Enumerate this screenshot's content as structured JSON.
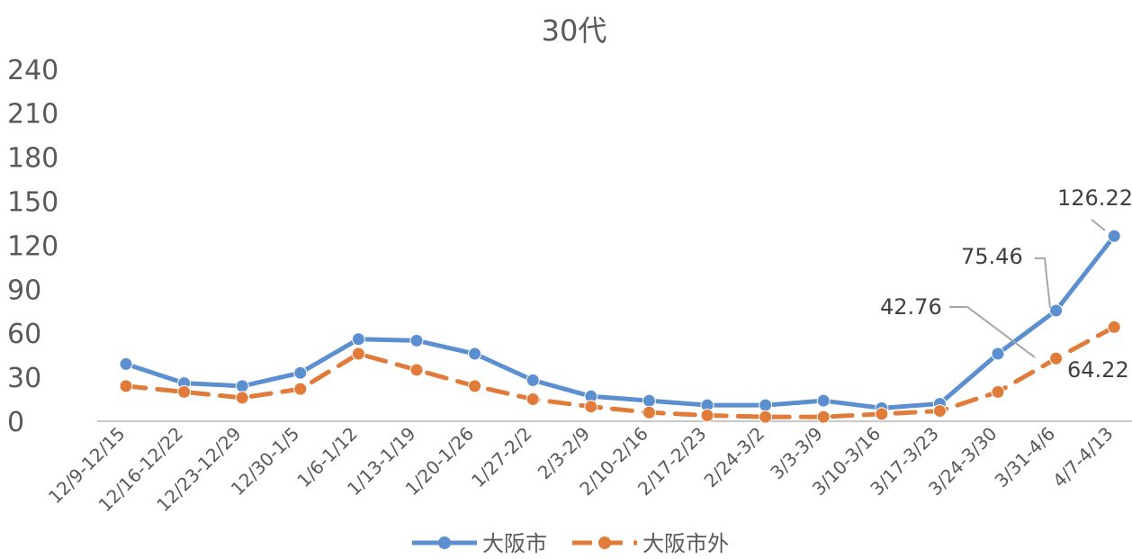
{
  "chart_data": {
    "type": "line",
    "title": "30代",
    "categories": [
      "12/9-12/15",
      "12/16-12/22",
      "12/23-12/29",
      "12/30-1/5",
      "1/6-1/12",
      "1/13-1/19",
      "1/20-1/26",
      "1/27-2/2",
      "2/3-2/9",
      "2/10-2/16",
      "2/17-2/23",
      "2/24-3/2",
      "3/3-3/9",
      "3/10-3/16",
      "3/17-3/23",
      "3/24-3/30",
      "3/31-4/6",
      "4/7-4/13"
    ],
    "series": [
      {
        "name": "大阪市",
        "color": "#5b8fcf",
        "style": "solid",
        "marker": "circle",
        "values": [
          39,
          26,
          24,
          33,
          56,
          55,
          46,
          28,
          17,
          14,
          11,
          11,
          14,
          9,
          12,
          46,
          75.46,
          126.22
        ]
      },
      {
        "name": "大阪市外",
        "color": "#e07b39",
        "style": "dashed",
        "marker": "circle",
        "values": [
          24,
          20,
          16,
          22,
          46,
          35,
          24,
          15,
          10,
          6,
          4,
          3,
          3,
          5,
          7,
          20,
          42.76,
          64.22
        ]
      }
    ],
    "yticks": [
      "0",
      "30",
      "60",
      "90",
      "120",
      "150",
      "180",
      "210",
      "240"
    ],
    "ylim": [
      0,
      240
    ],
    "grid": false,
    "legend": "bottom",
    "data_labels": [
      {
        "text": "126.22",
        "series": 0,
        "index": 17
      },
      {
        "text": "75.46",
        "series": 0,
        "index": 16
      },
      {
        "text": "42.76",
        "series": 1,
        "index": 16
      },
      {
        "text": "64.22",
        "series": 1,
        "index": 17
      }
    ]
  }
}
